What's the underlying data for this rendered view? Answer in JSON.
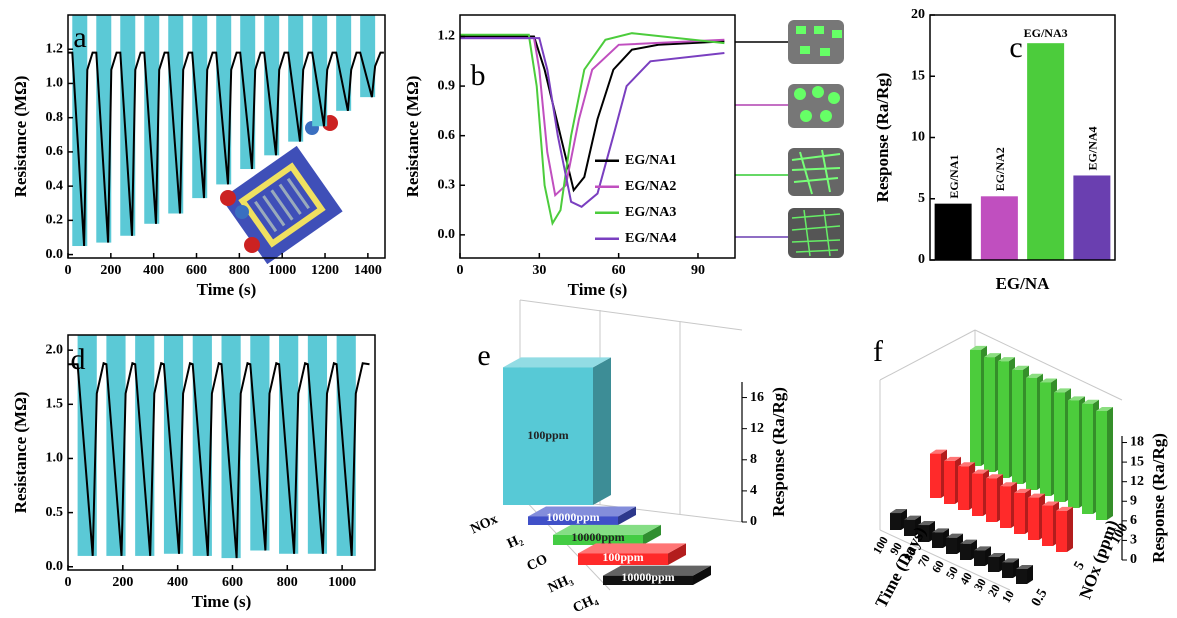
{
  "chart_data": [
    {
      "type": "line",
      "panel": "a",
      "xlabel": "Time (s)",
      "ylabel": "Resistance (MΩ)",
      "xlim": [
        0,
        1480
      ],
      "ylim": [
        -0.02,
        1.4
      ],
      "xticks": [
        0,
        200,
        400,
        600,
        800,
        1000,
        1200,
        1400
      ],
      "yticks": [
        {
          "value": 0,
          "label": "0.0"
        },
        0.2,
        0.4,
        0.6,
        0.8,
        {
          "value": 1,
          "label": "1.0"
        },
        1.2
      ],
      "band_color": "#5bc9d6",
      "bands": [
        {
          "x0": 20,
          "x1": 90,
          "y0": 0.05
        },
        {
          "x0": 132,
          "x1": 202,
          "y0": 0.07
        },
        {
          "x0": 244,
          "x1": 314,
          "y0": 0.11
        },
        {
          "x0": 356,
          "x1": 426,
          "y0": 0.18
        },
        {
          "x0": 468,
          "x1": 538,
          "y0": 0.24
        },
        {
          "x0": 580,
          "x1": 650,
          "y0": 0.33
        },
        {
          "x0": 692,
          "x1": 762,
          "y0": 0.41
        },
        {
          "x0": 804,
          "x1": 874,
          "y0": 0.5
        },
        {
          "x0": 916,
          "x1": 986,
          "y0": 0.58
        },
        {
          "x0": 1028,
          "x1": 1098,
          "y0": 0.66
        },
        {
          "x0": 1140,
          "x1": 1210,
          "y0": 0.75
        },
        {
          "x0": 1252,
          "x1": 1322,
          "y0": 0.84
        },
        {
          "x0": 1364,
          "x1": 1434,
          "y0": 0.92
        }
      ],
      "series": [
        {
          "color": "#000000",
          "x": [
            0,
            20,
            75,
            90,
            115,
            132,
            187,
            202,
            227,
            244,
            299,
            314,
            339,
            356,
            411,
            426,
            451,
            468,
            523,
            538,
            563,
            580,
            635,
            650,
            675,
            692,
            747,
            762,
            787,
            804,
            859,
            874,
            899,
            916,
            971,
            986,
            1011,
            1028,
            1083,
            1098,
            1123,
            1140,
            1195,
            1210,
            1235,
            1252,
            1307,
            1322,
            1347,
            1364,
            1419,
            1434,
            1459,
            1475
          ],
          "values": [
            1.18,
            1.18,
            0.05,
            1.08,
            1.18,
            1.18,
            0.07,
            1.08,
            1.18,
            1.18,
            0.11,
            1.08,
            1.18,
            1.18,
            0.18,
            1.08,
            1.18,
            1.18,
            0.24,
            1.08,
            1.18,
            1.18,
            0.33,
            1.08,
            1.18,
            1.18,
            0.41,
            1.08,
            1.18,
            1.18,
            0.5,
            1.08,
            1.18,
            1.18,
            0.58,
            1.08,
            1.18,
            1.18,
            0.66,
            1.08,
            1.18,
            1.18,
            0.75,
            1.08,
            1.18,
            1.18,
            0.84,
            1.08,
            1.18,
            1.18,
            0.92,
            1.1,
            1.18,
            1.18
          ]
        }
      ]
    },
    {
      "type": "line",
      "panel": "b",
      "xlabel": "Time (s)",
      "ylabel": "Resistance (MΩ)",
      "xlim": [
        0,
        104
      ],
      "ylim": [
        -0.14,
        1.33
      ],
      "xticks": [
        0,
        30,
        60,
        90
      ],
      "yticks": [
        {
          "value": 0,
          "label": "0.0"
        },
        0.3,
        0.6,
        0.9,
        1.2
      ],
      "legend": "right",
      "series": [
        {
          "name": "EG/NA1",
          "color": "#000000",
          "x": [
            0,
            28,
            32,
            38,
            43,
            47,
            52,
            58,
            65,
            75,
            100
          ],
          "values": [
            1.2,
            1.2,
            1.0,
            0.6,
            0.27,
            0.35,
            0.7,
            1.0,
            1.12,
            1.15,
            1.17
          ]
        },
        {
          "name": "EG/NA2",
          "color": "#c04fbf",
          "x": [
            0,
            28,
            30,
            33,
            36,
            40,
            45,
            50,
            60,
            100
          ],
          "values": [
            1.19,
            1.19,
            1.0,
            0.5,
            0.24,
            0.3,
            0.7,
            1.0,
            1.15,
            1.18
          ]
        },
        {
          "name": "EG/NA3",
          "color": "#4ccc3c",
          "x": [
            0,
            26,
            29,
            32,
            35,
            38,
            42,
            47,
            55,
            65,
            100
          ],
          "values": [
            1.21,
            1.21,
            0.9,
            0.3,
            0.07,
            0.15,
            0.6,
            1.0,
            1.18,
            1.22,
            1.16
          ]
        },
        {
          "name": "EG/NA4",
          "color": "#7a3fc0",
          "x": [
            0,
            30,
            33,
            37,
            42,
            46,
            52,
            58,
            63,
            72,
            100
          ],
          "values": [
            1.19,
            1.19,
            1.0,
            0.6,
            0.2,
            0.17,
            0.25,
            0.6,
            0.9,
            1.05,
            1.1
          ]
        }
      ]
    },
    {
      "type": "bar",
      "panel": "c",
      "xlabel": "EG/NA",
      "ylabel": "Response (Ra/Rg)",
      "categories": [
        "EG/NA1",
        "EG/NA2",
        "EG/NA3",
        "EG/NA4"
      ],
      "values": [
        4.6,
        5.2,
        17.7,
        6.9
      ],
      "colors": [
        "#000000",
        "#c04fbf",
        "#4ccc3c",
        "#6a3fb0"
      ],
      "ylim": [
        0,
        20
      ],
      "yticks": [
        0,
        5,
        10,
        15,
        20
      ]
    },
    {
      "type": "line",
      "panel": "d",
      "xlabel": "Time (s)",
      "ylabel": "Resistance (MΩ)",
      "xlim": [
        0,
        1120
      ],
      "ylim": [
        -0.03,
        2.14
      ],
      "xticks": [
        0,
        200,
        400,
        600,
        800,
        1000
      ],
      "yticks": [
        {
          "value": 0,
          "label": "0.0"
        },
        0.5,
        {
          "value": 1,
          "label": "1.0"
        },
        1.5,
        {
          "value": 2,
          "label": "2.0"
        }
      ],
      "band_color": "#5bc9d6",
      "bands": [
        {
          "x0": 35,
          "x1": 105,
          "y0": 0.1
        },
        {
          "x0": 140,
          "x1": 210,
          "y0": 0.1
        },
        {
          "x0": 245,
          "x1": 315,
          "y0": 0.1
        },
        {
          "x0": 350,
          "x1": 420,
          "y0": 0.12
        },
        {
          "x0": 455,
          "x1": 525,
          "y0": 0.1
        },
        {
          "x0": 560,
          "x1": 630,
          "y0": 0.08
        },
        {
          "x0": 665,
          "x1": 735,
          "y0": 0.15
        },
        {
          "x0": 770,
          "x1": 840,
          "y0": 0.12
        },
        {
          "x0": 875,
          "x1": 945,
          "y0": 0.12
        },
        {
          "x0": 980,
          "x1": 1050,
          "y0": 0.1
        }
      ],
      "series": [
        {
          "color": "#000000",
          "x": [
            0,
            35,
            90,
            105,
            130,
            140,
            195,
            210,
            235,
            245,
            300,
            315,
            340,
            350,
            405,
            420,
            445,
            455,
            510,
            525,
            550,
            560,
            615,
            630,
            655,
            665,
            720,
            735,
            760,
            770,
            825,
            840,
            865,
            875,
            930,
            945,
            970,
            980,
            1035,
            1050,
            1075,
            1100
          ],
          "values": [
            1.87,
            1.87,
            0.1,
            1.6,
            1.88,
            1.87,
            0.1,
            1.6,
            1.88,
            1.87,
            0.1,
            1.6,
            1.88,
            1.87,
            0.12,
            1.6,
            1.88,
            1.87,
            0.1,
            1.6,
            1.88,
            1.87,
            0.08,
            1.6,
            1.88,
            1.87,
            0.15,
            1.6,
            1.88,
            1.87,
            0.12,
            1.6,
            1.88,
            1.87,
            0.12,
            1.6,
            1.88,
            1.87,
            0.1,
            1.6,
            1.88,
            1.87
          ]
        }
      ]
    },
    {
      "type": "bar3d",
      "panel": "e",
      "ylabel": "Response (Ra/Rg)",
      "categories": [
        "NOx",
        "H₂",
        "CO",
        "NH₃",
        "CH₄"
      ],
      "values": [
        17.7,
        1.1,
        1.3,
        1.5,
        1.2
      ],
      "bar_labels": [
        "100ppm",
        "10000ppm",
        "10000ppm",
        "100ppm",
        "10000ppm"
      ],
      "colors": [
        "#57c9d6",
        "#4050c8",
        "#44cc44",
        "#ff2a2a",
        "#111111"
      ],
      "ylim": [
        0,
        18
      ],
      "yticks": [
        0,
        4,
        8,
        12,
        16
      ]
    },
    {
      "type": "bar3d",
      "panel": "f",
      "xlabel": "Time (Days)",
      "zlabel": "NOx (ppm)",
      "ylabel": "Response (Ra/Rg)",
      "categories": [
        "100",
        "90",
        "80",
        "70",
        "60",
        "50",
        "40",
        "30",
        "20",
        "10"
      ],
      "series": [
        {
          "name": "0.5",
          "color": "#111111",
          "values": [
            2.6,
            2.5,
            2.6,
            2.4,
            2.5,
            2.5,
            2.4,
            2.3,
            2.4,
            2.3
          ]
        },
        {
          "name": "5",
          "color": "#ff2a2a",
          "values": [
            6.8,
            6.6,
            6.7,
            6.5,
            6.7,
            6.4,
            6.3,
            6.5,
            6.2,
            6.3
          ]
        },
        {
          "name": "100",
          "color": "#4ccc3c",
          "values": [
            17.8,
            17.6,
            17.9,
            17.5,
            17.2,
            17.4,
            16.8,
            16.5,
            16.9,
            16.7
          ]
        }
      ],
      "ylim": [
        0,
        19
      ],
      "yticks": [
        0,
        3,
        6,
        9,
        12,
        15,
        18
      ]
    }
  ]
}
